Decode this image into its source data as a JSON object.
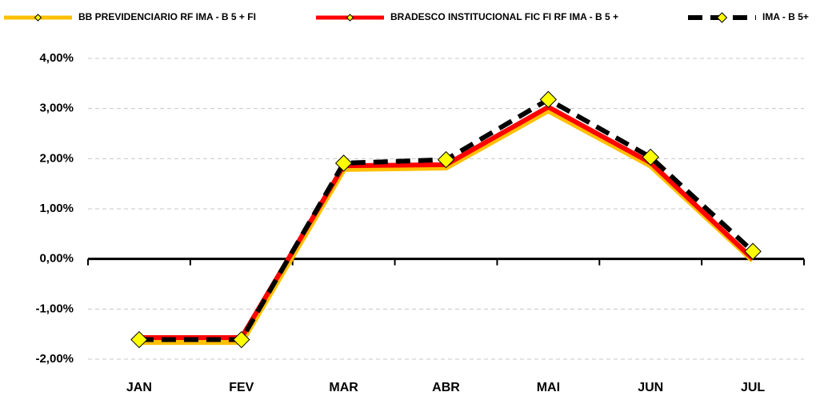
{
  "chart_data": {
    "type": "line",
    "categories": [
      "JAN",
      "FEV",
      "MAR",
      "ABR",
      "MAI",
      "JUN",
      "JUL"
    ],
    "series": [
      {
        "name": "BB PREVIDENCIARIO RF IMA - B 5 + FI",
        "color": "#ffc000",
        "values": [
          -1.65,
          -1.65,
          1.8,
          1.83,
          2.97,
          1.87,
          -0.02
        ],
        "markers": false
      },
      {
        "name": "BRADESCO INSTITUCIONAL FIC FI RF IMA - B 5 +",
        "color": "#ff0000",
        "values": [
          -1.57,
          -1.57,
          1.86,
          1.88,
          3.03,
          1.92,
          0.0
        ],
        "markers": false
      },
      {
        "name": "IMA - B 5+",
        "color": "#000000",
        "dashed": true,
        "marker_color": "#ffff00",
        "values": [
          -1.61,
          -1.61,
          1.91,
          1.98,
          3.18,
          2.03,
          0.15
        ],
        "markers": true
      }
    ],
    "ylim": [
      -2,
      4
    ],
    "yticks": [
      {
        "value": -2,
        "label": "-2,00%"
      },
      {
        "value": -1,
        "label": "-1,00%"
      },
      {
        "value": 0,
        "label": "0,00%"
      },
      {
        "value": 1,
        "label": "1,00%"
      },
      {
        "value": 2,
        "label": "2,00%"
      },
      {
        "value": 3,
        "label": "3,00%"
      },
      {
        "value": 4,
        "label": "4,00%"
      }
    ],
    "grid": true,
    "legend": "top"
  }
}
